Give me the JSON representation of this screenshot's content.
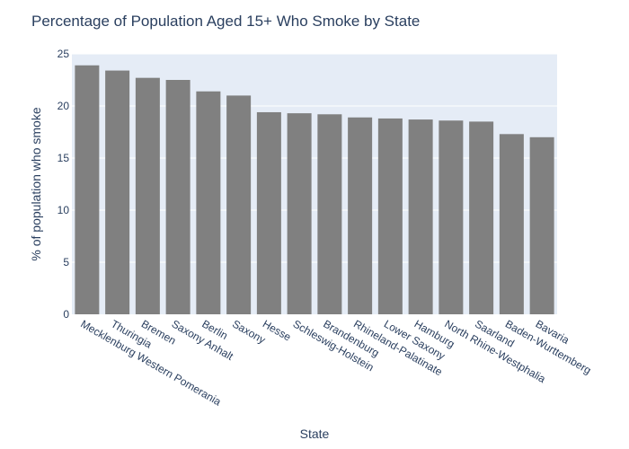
{
  "chart_data": {
    "type": "bar",
    "title": "Percentage of Population Aged 15+ Who Smoke by State",
    "xlabel": "State",
    "ylabel": "% of population who smoke",
    "categories": [
      "Mecklenburg Western Pomerania",
      "Thuringia",
      "Bremen",
      "Saxony Anhalt",
      "Berlin",
      "Saxony",
      "Hesse",
      "Schleswig-Holstein",
      "Brandenburg",
      "Rhineland-Palatinate",
      "Lower Saxony",
      "Hamburg",
      "North Rhine-Westphalia",
      "Saarland",
      "Baden-Wurttemberg",
      "Bavaria"
    ],
    "values": [
      23.9,
      23.4,
      22.7,
      22.5,
      21.4,
      21.0,
      19.4,
      19.3,
      19.2,
      18.9,
      18.8,
      18.7,
      18.6,
      18.5,
      17.3,
      17.0
    ],
    "ylim": [
      0,
      25
    ],
    "yticks": [
      0,
      5,
      10,
      15,
      20,
      25
    ],
    "grid": true,
    "legend": "none",
    "colors": {
      "bar": "#808080",
      "plot_bg": "#e5ecf6",
      "grid": "#ffffff",
      "text": "#2a3f5f"
    }
  }
}
